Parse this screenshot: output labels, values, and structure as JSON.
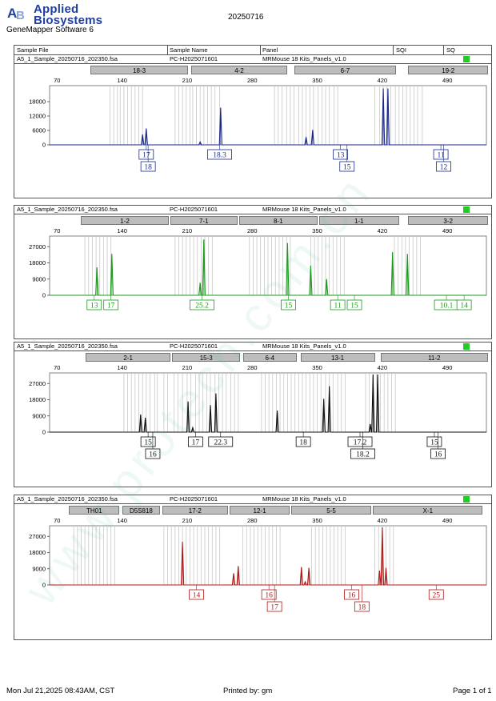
{
  "header": {
    "brand_line1": "Applied",
    "brand_line2": "Biosystems",
    "logo_icon": "applied-biosystems-logo-icon",
    "software": "GeneMapper Software 6",
    "report_title": "20250716"
  },
  "columns": {
    "sample_file": "Sample File",
    "sample_name": "Sample Name",
    "panel": "Panel",
    "sqi": "SQI",
    "sq": "SQ"
  },
  "footer": {
    "datetime": "Mon Jul 21,2025 08:43AM, CST",
    "printed_by": "Printed by: gm",
    "page": "Page 1 of 1"
  },
  "colors": {
    "blue": "#1a2a8c",
    "green": "#1a9a1a",
    "black": "#111111",
    "red": "#b01818",
    "qc_pass": "#22cc22"
  },
  "chart_data": [
    {
      "type": "line",
      "color": "#1a2a8c",
      "sample_file": "A5_1_Sample_20250716_202350.fsa",
      "sample_name": "PC-H2025071601",
      "panel": "MRMouse 18 Kits_Panels_v1.0",
      "x_ticks": [
        70,
        140,
        210,
        280,
        350,
        420,
        490
      ],
      "y_ticks": [
        "0",
        "6000",
        "12000",
        "18000"
      ],
      "xlim": [
        62,
        532
      ],
      "ylim": [
        0,
        24000
      ],
      "markers": [
        {
          "name": "18-3",
          "start": 106,
          "end": 211
        },
        {
          "name": "4-2",
          "start": 214,
          "end": 318
        },
        {
          "name": "6-7",
          "start": 325,
          "end": 435
        },
        {
          "name": "19-2",
          "start": 448,
          "end": 575
        }
      ],
      "bins": [
        127,
        131,
        135,
        138,
        142,
        146,
        150,
        154,
        158,
        162,
        197,
        201,
        205,
        209,
        213,
        216,
        220,
        224,
        228,
        232,
        236,
        240,
        245,
        304,
        308,
        312,
        317,
        321,
        325,
        330,
        334,
        338,
        342,
        346,
        351,
        355,
        359,
        363,
        368,
        372,
        412,
        417,
        421,
        425,
        429,
        434,
        438,
        442,
        446,
        450,
        454,
        458,
        463
      ],
      "peaks": [
        {
          "x": 162,
          "y": 4300
        },
        {
          "x": 166,
          "y": 6800
        },
        {
          "x": 224,
          "y": 1200
        },
        {
          "x": 246,
          "y": 15500
        },
        {
          "x": 338,
          "y": 3200
        },
        {
          "x": 345,
          "y": 6200
        },
        {
          "x": 421,
          "y": 23500
        },
        {
          "x": 426,
          "y": 23500
        }
      ],
      "calls": [
        {
          "row": 1,
          "x": 166,
          "text": "17"
        },
        {
          "row": 2,
          "x": 168,
          "text": "18"
        },
        {
          "row": 1,
          "x": 245,
          "text": "18.3"
        },
        {
          "row": 1,
          "x": 375,
          "text": "13"
        },
        {
          "row": 2,
          "x": 382,
          "text": "15"
        },
        {
          "row": 1,
          "x": 483,
          "text": "11"
        },
        {
          "row": 2,
          "x": 486,
          "text": "12"
        }
      ]
    },
    {
      "type": "line",
      "color": "#1a9a1a",
      "sample_file": "A5_1_Sample_20250716_202350.fsa",
      "sample_name": "PC-H2025071601",
      "panel": "MRMouse 18 Kits_Panels_v1.0",
      "x_ticks": [
        70,
        140,
        210,
        280,
        350,
        420,
        490
      ],
      "y_ticks": [
        "0",
        "9000",
        "18000",
        "27000"
      ],
      "xlim": [
        62,
        532
      ],
      "ylim": [
        0,
        32000
      ],
      "markers": [
        {
          "name": "1-2",
          "start": 96,
          "end": 190
        },
        {
          "name": "7-1",
          "start": 192,
          "end": 264
        },
        {
          "name": "8-1",
          "start": 266,
          "end": 350
        },
        {
          "name": "1-1",
          "start": 352,
          "end": 438
        },
        {
          "name": "3-2",
          "start": 448,
          "end": 572
        }
      ],
      "bins": [
        100,
        104,
        108,
        112,
        116,
        120,
        124,
        128,
        197,
        201,
        205,
        209,
        213,
        217,
        221,
        225,
        229,
        233,
        237,
        277,
        281,
        285,
        289,
        293,
        297,
        301,
        305,
        309,
        313,
        317,
        321,
        343,
        347,
        351,
        355,
        359,
        363,
        367,
        371,
        375,
        379,
        433,
        437,
        441,
        445,
        449,
        453,
        457,
        461
      ],
      "peaks": [
        {
          "x": 113,
          "y": 15500
        },
        {
          "x": 129,
          "y": 23000
        },
        {
          "x": 224,
          "y": 7000
        },
        {
          "x": 228,
          "y": 31000
        },
        {
          "x": 318,
          "y": 29000
        },
        {
          "x": 343,
          "y": 16500
        },
        {
          "x": 360,
          "y": 9000
        },
        {
          "x": 431,
          "y": 24000
        },
        {
          "x": 447,
          "y": 23000
        }
      ],
      "calls": [
        {
          "row": 1,
          "x": 110,
          "text": "13"
        },
        {
          "row": 1,
          "x": 128,
          "text": "17"
        },
        {
          "row": 1,
          "x": 226,
          "text": "25.2"
        },
        {
          "row": 1,
          "x": 319,
          "text": "15"
        },
        {
          "row": 1,
          "x": 372,
          "text": "11"
        },
        {
          "row": 1,
          "x": 390,
          "text": "15"
        },
        {
          "row": 1,
          "x": 489,
          "text": "10.1"
        },
        {
          "row": 1,
          "x": 508,
          "text": "14"
        }
      ]
    },
    {
      "type": "line",
      "color": "#111111",
      "sample_file": "A5_1_Sample_20250716_202350.fsa",
      "sample_name": "PC-H2025071601",
      "panel": "MRMouse 18 Kits_Panels_v1.0",
      "x_ticks": [
        70,
        140,
        210,
        280,
        350,
        420,
        490
      ],
      "y_ticks": [
        "0",
        "9000",
        "18000",
        "27000"
      ],
      "xlim": [
        62,
        532
      ],
      "ylim": [
        0,
        32000
      ],
      "markers": [
        {
          "name": "2-1",
          "start": 101,
          "end": 192
        },
        {
          "name": "15-3",
          "start": 194,
          "end": 267
        },
        {
          "name": "6-4",
          "start": 270,
          "end": 328
        },
        {
          "name": "13-1",
          "start": 332,
          "end": 412
        },
        {
          "name": "11-2",
          "start": 418,
          "end": 568
        }
      ],
      "bins": [
        142,
        146,
        150,
        154,
        158,
        162,
        166,
        170,
        175,
        178,
        185,
        189,
        196,
        200,
        205,
        210,
        214,
        219,
        223,
        227,
        231,
        235,
        240,
        244,
        248,
        252,
        257,
        261,
        265,
        290,
        294,
        298,
        302,
        306,
        310,
        314,
        318,
        322,
        326,
        330,
        334,
        338,
        342,
        346,
        350,
        354,
        359,
        363,
        367,
        372,
        376,
        380,
        402,
        406,
        410,
        414,
        418,
        422,
        426,
        430,
        434
      ],
      "peaks": [
        {
          "x": 160,
          "y": 9800
        },
        {
          "x": 165,
          "y": 8000
        },
        {
          "x": 211,
          "y": 17000
        },
        {
          "x": 216,
          "y": 2500
        },
        {
          "x": 235,
          "y": 15000
        },
        {
          "x": 241,
          "y": 21500
        },
        {
          "x": 307,
          "y": 12000
        },
        {
          "x": 357,
          "y": 18500
        },
        {
          "x": 363,
          "y": 25500
        },
        {
          "x": 407,
          "y": 4500
        },
        {
          "x": 410,
          "y": 32000
        },
        {
          "x": 415,
          "y": 32000
        }
      ],
      "calls": [
        {
          "row": 1,
          "x": 168,
          "text": "15"
        },
        {
          "row": 2,
          "x": 173,
          "text": "16"
        },
        {
          "row": 1,
          "x": 219,
          "text": "17"
        },
        {
          "row": 1,
          "x": 246,
          "text": "22.3"
        },
        {
          "row": 1,
          "x": 335,
          "text": "18"
        },
        {
          "row": 1,
          "x": 396,
          "text": "17.2"
        },
        {
          "row": 2,
          "x": 399,
          "text": "18.2"
        },
        {
          "row": 1,
          "x": 476,
          "text": "15"
        },
        {
          "row": 2,
          "x": 480,
          "text": "16"
        }
      ]
    },
    {
      "type": "line",
      "color": "#b01818",
      "sample_file": "A5_1_Sample_20250716_202350.fsa",
      "sample_name": "PC-H2025071601",
      "panel": "MRMouse 18 Kits_Panels_v1.0",
      "x_ticks": [
        70,
        140,
        210,
        280,
        350,
        420,
        490
      ],
      "y_ticks": [
        "0",
        "9000",
        "18000",
        "27000"
      ],
      "xlim": [
        62,
        532
      ],
      "ylim": [
        0,
        32000
      ],
      "markers": [
        {
          "name": "TH01",
          "start": 83,
          "end": 137
        },
        {
          "name": "D5S818",
          "start": 140,
          "end": 181
        },
        {
          "name": "17-2",
          "start": 183,
          "end": 254
        },
        {
          "name": "12-1",
          "start": 256,
          "end": 320
        },
        {
          "name": "5-5",
          "start": 322,
          "end": 408
        },
        {
          "name": "X-1",
          "start": 410,
          "end": 528
        }
      ],
      "bins": [
        88,
        92,
        96,
        100,
        104,
        108,
        112,
        116,
        120,
        124,
        128,
        132,
        185,
        189,
        193,
        197,
        201,
        205,
        209,
        213,
        217,
        221,
        225,
        229,
        233,
        237,
        241,
        245,
        270,
        274,
        278,
        282,
        286,
        290,
        294,
        298,
        302,
        306,
        310,
        344,
        348,
        352,
        356,
        360,
        364,
        368,
        372,
        376,
        380,
        412,
        416,
        420,
        424,
        428,
        432
      ],
      "peaks": [
        {
          "x": 205,
          "y": 24000
        },
        {
          "x": 260,
          "y": 6500
        },
        {
          "x": 265,
          "y": 10500
        },
        {
          "x": 333,
          "y": 10000
        },
        {
          "x": 337,
          "y": 1800
        },
        {
          "x": 341,
          "y": 9500
        },
        {
          "x": 417,
          "y": 8000
        },
        {
          "x": 420,
          "y": 32000
        },
        {
          "x": 424,
          "y": 9500
        }
      ],
      "calls": [
        {
          "row": 1,
          "x": 220,
          "text": "14"
        },
        {
          "row": 1,
          "x": 298,
          "text": "16"
        },
        {
          "row": 2,
          "x": 304,
          "text": "17"
        },
        {
          "row": 1,
          "x": 387,
          "text": "16"
        },
        {
          "row": 2,
          "x": 398,
          "text": "18"
        },
        {
          "row": 1,
          "x": 478,
          "text": "25"
        }
      ]
    }
  ]
}
